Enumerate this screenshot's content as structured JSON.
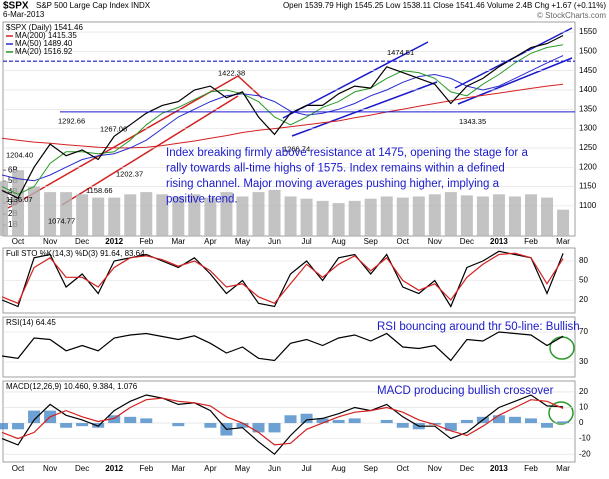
{
  "header": {
    "symbol": "$SPX",
    "name": "S&P 500 Large Cap Index INDX",
    "date": "6-Mar-2013",
    "quote": "Open 1539.79  High 1545.25  Low 1538.11  Close 1541.46  Volume 2.4B  Chg +1.67 (+0.11%)",
    "watermark": "© StockCharts.com"
  },
  "chart_data": [
    {
      "type": "line",
      "title": "$SPX (Daily) 1541.46",
      "categories": [
        null,
        "Oct",
        null,
        "Nov",
        null,
        "Dec",
        null,
        "2012",
        null,
        "Feb",
        null,
        "Mar",
        null,
        "Apr",
        null,
        "May",
        null,
        "Jun",
        null,
        "Jul",
        null,
        "Aug",
        null,
        "Sep",
        null,
        "Oct",
        null,
        "Nov",
        null,
        "Dec",
        null,
        "2013",
        null,
        "Feb",
        null,
        "Mar"
      ],
      "series": [
        {
          "type": "bar",
          "axis": "y2",
          "color": "#b4b4b4",
          "values": [
            5,
            6,
            4.5,
            4,
            4,
            3.8,
            3.5,
            3.5,
            3.8,
            4,
            3.8,
            3.6,
            3.8,
            3.5,
            4,
            3.6,
            4,
            4.2,
            3.6,
            3.4,
            3.2,
            3,
            3.2,
            3.4,
            3.6,
            3.5,
            3.6,
            3.8,
            4,
            3.7,
            3.6,
            3.8,
            3.6,
            3.8,
            3.5,
            2.4
          ]
        },
        {
          "name": "MA(200) 1415.35",
          "color": "#d42020",
          "values": [
            1275,
            1270,
            1265,
            1262,
            1258,
            1255,
            1252,
            1250,
            1250,
            1252,
            1256,
            1262,
            1268,
            1275,
            1282,
            1290,
            1296,
            1300,
            1305,
            1310,
            1315,
            1320,
            1328,
            1335,
            1343,
            1350,
            1358,
            1365,
            1372,
            1380,
            1386,
            1392,
            1398,
            1404,
            1410,
            1415
          ]
        },
        {
          "name": "MA(50) 1489.40",
          "color": "#2a2ad0",
          "values": [
            1180,
            1170,
            1165,
            1180,
            1200,
            1220,
            1230,
            1235,
            1250,
            1270,
            1300,
            1330,
            1350,
            1370,
            1385,
            1390,
            1385,
            1370,
            1345,
            1335,
            1340,
            1350,
            1365,
            1385,
            1400,
            1420,
            1435,
            1440,
            1430,
            1410,
            1400,
            1410,
            1430,
            1450,
            1470,
            1489
          ]
        },
        {
          "name": "MA(20) 1516.92",
          "color": "#2a9a2a",
          "values": [
            1150,
            1130,
            1150,
            1210,
            1240,
            1240,
            1235,
            1240,
            1270,
            1310,
            1340,
            1355,
            1375,
            1395,
            1400,
            1390,
            1370,
            1330,
            1310,
            1330,
            1355,
            1370,
            1395,
            1405,
            1430,
            1450,
            1445,
            1430,
            1395,
            1385,
            1415,
            1440,
            1470,
            1495,
            1510,
            1517
          ]
        },
        {
          "color": "#000000",
          "values": [
            1140,
            1120,
            1200,
            1260,
            1230,
            1245,
            1220,
            1280,
            1310,
            1340,
            1360,
            1370,
            1400,
            1410,
            1380,
            1395,
            1330,
            1285,
            1340,
            1360,
            1360,
            1390,
            1410,
            1405,
            1460,
            1445,
            1430,
            1415,
            1365,
            1410,
            1430,
            1460,
            1485,
            1510,
            1520,
            1541
          ]
        }
      ],
      "ylim": [
        1022,
        1576
      ],
      "yticks": [
        1100,
        1150,
        1200,
        1250,
        1300,
        1350,
        1400,
        1450,
        1500,
        1550
      ],
      "y2lim": [
        0,
        19.5
      ],
      "y2ticks": [
        {
          "value": 1,
          "label": "1B"
        },
        {
          "value": 2,
          "label": "2B"
        },
        {
          "value": 3,
          "label": "3B"
        },
        {
          "value": 4,
          "label": "4B"
        },
        {
          "value": 5,
          "label": "5B"
        },
        {
          "value": 6,
          "label": "6B"
        }
      ],
      "grid": true,
      "price_labels": [
        {
          "value": 1204.4,
          "label": "1204.40"
        },
        {
          "value": 1292.66,
          "label": "1292.66"
        },
        {
          "value": 1267.06,
          "label": "1267.06"
        },
        {
          "value": 1158.66,
          "label": "1158.66"
        },
        {
          "value": 1202.37,
          "label": "1202.37"
        },
        {
          "value": 1136.07,
          "label": "1136.07"
        },
        {
          "value": 1074.77,
          "label": "1074.77"
        },
        {
          "value": 1422.38,
          "label": "1422.38"
        },
        {
          "value": 1266.74,
          "label": "1266.74"
        },
        {
          "value": 1474.51,
          "label": "1474.51"
        },
        {
          "value": 1343.35,
          "label": "1343.35"
        }
      ],
      "annotation": [
        "Index breaking firmly above resistance at 1475, opening the stage for a",
        "rally towards all-time highs of 1575.  Index remains within a defined",
        "rising channel.   Major moving averages pushing higher, implying a",
        "positive trend."
      ]
    },
    {
      "type": "line",
      "title": "Full STO %K(14,3) %D(3) 91.64, 83.64",
      "ylim": [
        0,
        100
      ],
      "yticks": [
        20,
        50,
        80
      ],
      "grid": true,
      "series": [
        {
          "color": "#000000",
          "values": [
            20,
            10,
            85,
            90,
            40,
            60,
            30,
            80,
            85,
            90,
            80,
            70,
            85,
            60,
            30,
            50,
            15,
            10,
            60,
            80,
            50,
            85,
            90,
            60,
            90,
            40,
            30,
            50,
            10,
            70,
            80,
            95,
            90,
            85,
            30,
            91.64
          ]
        },
        {
          "color": "#d42020",
          "values": [
            25,
            15,
            70,
            85,
            55,
            55,
            40,
            70,
            85,
            88,
            82,
            72,
            80,
            65,
            40,
            45,
            25,
            15,
            45,
            75,
            55,
            75,
            88,
            65,
            85,
            50,
            35,
            45,
            20,
            55,
            75,
            90,
            92,
            85,
            45,
            83.64
          ]
        }
      ]
    },
    {
      "type": "line",
      "title": "RSI(14) 64.45",
      "annotation": "RSI bouncing around thr 50-line: Bullish",
      "ylim": [
        10,
        90
      ],
      "yticks": [
        30,
        70
      ],
      "grid": true,
      "series": [
        {
          "color": "#000000",
          "values": [
            38,
            35,
            62,
            60,
            45,
            52,
            45,
            62,
            66,
            68,
            64,
            60,
            65,
            55,
            42,
            50,
            35,
            32,
            55,
            60,
            52,
            62,
            66,
            58,
            68,
            50,
            48,
            52,
            32,
            60,
            58,
            70,
            68,
            66,
            52,
            64.45
          ]
        }
      ]
    },
    {
      "type": "line",
      "title": "MACD(12,26,9) 10.460, 9.384, 1.076",
      "annotation": "MACD producing bullish crossover",
      "ylim": [
        -25,
        27
      ],
      "yticks": [
        -20,
        -10,
        0,
        10,
        20
      ],
      "grid": true,
      "categories": [
        null,
        "Oct",
        null,
        "Nov",
        null,
        "Dec",
        null,
        "2012",
        null,
        "Feb",
        null,
        "Mar",
        null,
        "Apr",
        null,
        "May",
        null,
        "Jun",
        null,
        "Jul",
        null,
        "Aug",
        null,
        "Sep",
        null,
        "Oct",
        null,
        "Nov",
        null,
        "Dec",
        null,
        "2013",
        null,
        "Feb",
        null,
        "Mar"
      ],
      "series": [
        {
          "type": "bar",
          "color": "#4a8ac8",
          "values": [
            -4,
            -4,
            8,
            8,
            -3,
            -2,
            -3,
            5,
            4,
            3,
            0,
            -2,
            0,
            -3,
            -8,
            -3,
            -6,
            -6,
            5,
            6,
            3,
            2,
            3,
            0,
            2,
            -3,
            -4,
            -1,
            -5,
            2,
            4,
            5,
            4,
            3,
            -3,
            1.076
          ]
        },
        {
          "color": "#000000",
          "values": [
            -10,
            -14,
            2,
            12,
            5,
            2,
            -2,
            8,
            14,
            18,
            16,
            12,
            13,
            8,
            -4,
            -3,
            -12,
            -20,
            -8,
            2,
            3,
            6,
            10,
            8,
            12,
            4,
            -2,
            -2,
            -10,
            -6,
            2,
            10,
            14,
            18,
            11,
            10.46
          ]
        },
        {
          "color": "#d42020",
          "values": [
            -6,
            -10,
            -6,
            4,
            8,
            4,
            1,
            3,
            10,
            15,
            16,
            14,
            13,
            11,
            4,
            0,
            -6,
            -14,
            -13,
            -4,
            0,
            4,
            7,
            8,
            10,
            7,
            2,
            -1,
            -5,
            -8,
            -2,
            5,
            10,
            15,
            14,
            9.384
          ]
        }
      ]
    }
  ]
}
